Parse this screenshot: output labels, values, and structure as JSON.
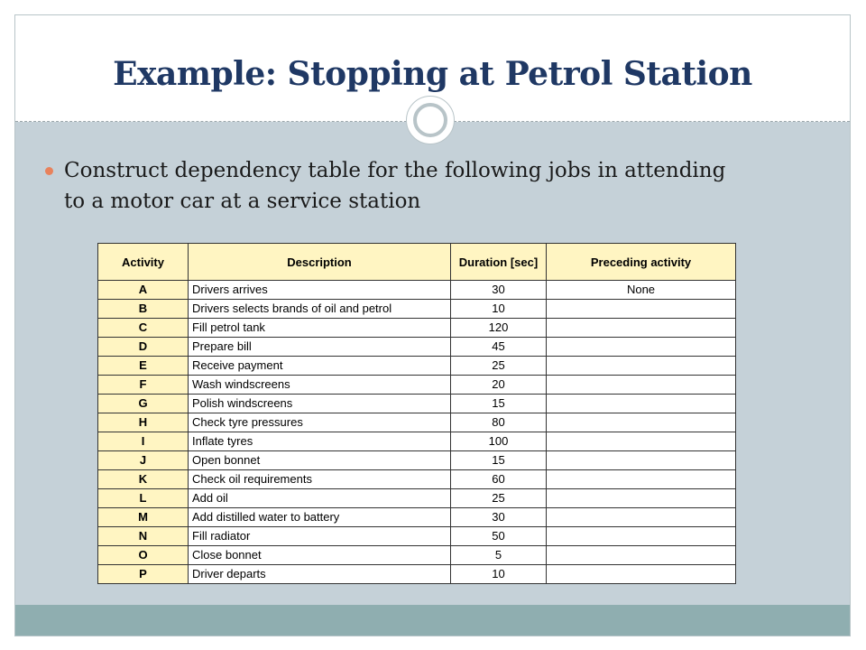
{
  "slide": {
    "title": "Example: Stopping at Petrol Station",
    "bullet": "Construct dependency table for the following jobs in attending to a motor car at a service station"
  },
  "table": {
    "headers": {
      "activity": "Activity",
      "description": "Description",
      "duration": "Duration [sec]",
      "preceding": "Preceding activity"
    },
    "rows": [
      {
        "activity": "A",
        "description": "Drivers arrives",
        "duration": "30",
        "preceding": "None"
      },
      {
        "activity": "B",
        "description": "Drivers selects brands of oil and petrol",
        "duration": "10",
        "preceding": ""
      },
      {
        "activity": "C",
        "description": "Fill petrol tank",
        "duration": "120",
        "preceding": ""
      },
      {
        "activity": "D",
        "description": "Prepare bill",
        "duration": "45",
        "preceding": ""
      },
      {
        "activity": "E",
        "description": "Receive payment",
        "duration": "25",
        "preceding": ""
      },
      {
        "activity": "F",
        "description": "Wash windscreens",
        "duration": "20",
        "preceding": ""
      },
      {
        "activity": "G",
        "description": "Polish windscreens",
        "duration": "15",
        "preceding": ""
      },
      {
        "activity": "H",
        "description": "Check tyre pressures",
        "duration": "80",
        "preceding": ""
      },
      {
        "activity": "I",
        "description": "Inflate tyres",
        "duration": "100",
        "preceding": ""
      },
      {
        "activity": "J",
        "description": "Open bonnet",
        "duration": "15",
        "preceding": ""
      },
      {
        "activity": "K",
        "description": "Check oil requirements",
        "duration": "60",
        "preceding": ""
      },
      {
        "activity": "L",
        "description": "Add oil",
        "duration": "25",
        "preceding": ""
      },
      {
        "activity": "M",
        "description": "Add distilled water to battery",
        "duration": "30",
        "preceding": ""
      },
      {
        "activity": "N",
        "description": "Fill radiator",
        "duration": "50",
        "preceding": ""
      },
      {
        "activity": "O",
        "description": "Close bonnet",
        "duration": "5",
        "preceding": ""
      },
      {
        "activity": "P",
        "description": "Driver departs",
        "duration": "10",
        "preceding": ""
      }
    ]
  },
  "colors": {
    "title": "#1f3864",
    "bullet": "#e8825c",
    "content_background": "#c5d1d8",
    "footer_band": "#8faeb0",
    "header_fill": "#fff5c2"
  }
}
